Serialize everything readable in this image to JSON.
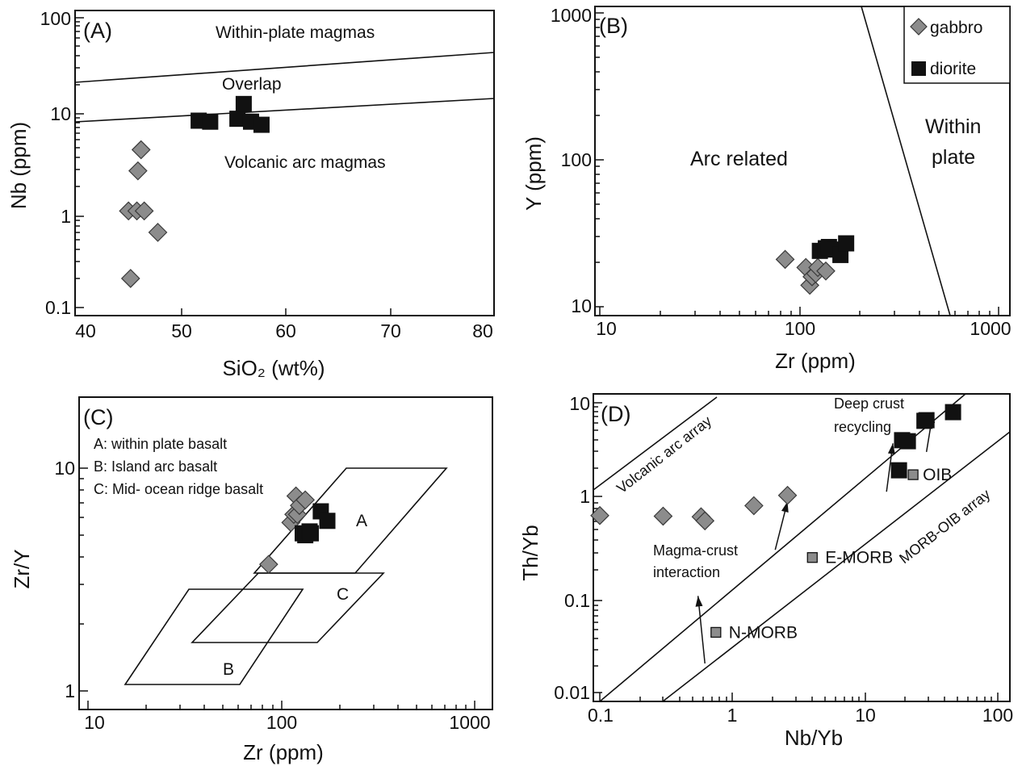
{
  "chart_data": [
    {
      "panel": "(A)",
      "type": "scatter",
      "xlabel": "SiO₂ (wt%)",
      "ylabel": "Nb (ppm)",
      "xlim": [
        40,
        80
      ],
      "ylim": [
        0.1,
        100
      ],
      "yscale": "log",
      "xticks": [
        "40",
        "50",
        "60",
        "70",
        "80"
      ],
      "yticks": [
        "0.1",
        "1",
        "10",
        "100"
      ],
      "boundaries": [
        {
          "x": [
            40,
            80
          ],
          "y": [
            22,
            45
          ]
        },
        {
          "x": [
            40,
            80
          ],
          "y": [
            8.2,
            14.5
          ]
        }
      ],
      "regions": [
        "Within-plate magmas",
        "Overlap",
        "Volcanic arc magmas"
      ],
      "series": [
        {
          "name": "gabbro",
          "x": [
            45.1,
            45.3,
            45.9,
            46.0,
            46.3,
            46.6,
            47.9
          ],
          "y": [
            1.0,
            0.2,
            1.0,
            2.6,
            4.3,
            1.0,
            0.6
          ]
        },
        {
          "name": "diorite",
          "x": [
            51.8,
            52.9,
            55.5,
            56.1,
            56.8,
            57.8
          ],
          "y": [
            8.6,
            8.4,
            9.0,
            12.8,
            8.4,
            7.8
          ]
        }
      ]
    },
    {
      "panel": "(B)",
      "type": "scatter",
      "xlabel": "Zr (ppm)",
      "ylabel": "Y (ppm)",
      "xlim": [
        10,
        1000
      ],
      "ylim": [
        10,
        1000
      ],
      "xscale": "log",
      "yscale": "log",
      "xticks": [
        "10",
        "100",
        "1000"
      ],
      "yticks": [
        "10",
        "100",
        "1000"
      ],
      "boundaries": [
        {
          "x": [
            230,
            590
          ],
          "y": [
            1000,
            10
          ]
        }
      ],
      "regions": [
        "Arc related",
        "Within",
        "plate"
      ],
      "legend": [
        "gabbro",
        "diorite"
      ],
      "series": [
        {
          "name": "gabbro",
          "x": [
            85,
            108,
            113,
            116,
            121,
            124,
            136
          ],
          "y": [
            21,
            18.5,
            14,
            16,
            16.8,
            18.5,
            17.5
          ]
        },
        {
          "name": "diorite",
          "x": [
            127,
            136,
            141,
            151,
            161,
            172
          ],
          "y": [
            24,
            25,
            25.5,
            24.5,
            22.5,
            27
          ]
        }
      ]
    },
    {
      "panel": "(C)",
      "type": "scatter",
      "xlabel": "Zr (ppm)",
      "ylabel": "Zr/Y",
      "xlim": [
        10,
        1000
      ],
      "ylim": [
        0.9,
        20
      ],
      "xscale": "log",
      "yscale": "log",
      "xticks": [
        "10",
        "100",
        "1000"
      ],
      "yticks": [
        "1",
        "10"
      ],
      "fields": [
        {
          "name": "A",
          "x": [
            70,
            210,
            720,
            240
          ],
          "y": [
            3.5,
            3.5,
            10,
            10
          ]
        },
        {
          "name": "B",
          "x": [
            16,
            59,
            121,
            32
          ],
          "y": [
            1.15,
            1.15,
            3,
            3
          ]
        },
        {
          "name": "C",
          "x": [
            34,
            144,
            325,
            79
          ],
          "y": [
            1.8,
            1.8,
            3.5,
            3.5
          ]
        }
      ],
      "field_notes": [
        "A: within plate basalt",
        "B: Island arc basalt",
        "C: Mid- ocean ridge basalt"
      ],
      "series": [
        {
          "name": "gabbro",
          "x": [
            86,
            112,
            116,
            119,
            121,
            124,
            133
          ],
          "y": [
            3.7,
            5.7,
            6.2,
            7.5,
            6.2,
            6.8,
            7.2
          ]
        },
        {
          "name": "diorite",
          "x": [
            129,
            133,
            140,
            142,
            160,
            173
          ],
          "y": [
            5.1,
            5.0,
            5.2,
            5.1,
            6.4,
            5.8
          ]
        }
      ]
    },
    {
      "panel": "(D)",
      "type": "scatter",
      "xlabel": "Nb/Yb",
      "ylabel": "Th/Yb",
      "xlim": [
        0.09,
        120
      ],
      "ylim": [
        0.01,
        12
      ],
      "xscale": "log",
      "yscale": "log",
      "xticks": [
        "0.1",
        "1",
        "10",
        "100"
      ],
      "yticks": [
        "0.01",
        "0.1",
        "1",
        "10"
      ],
      "boundaries": [
        {
          "name": "Volcanic arc array",
          "x": [
            0.09,
            2.1
          ],
          "y": [
            1.1,
            12
          ]
        },
        {
          "name": "upper MORB-OIB",
          "x": [
            0.1,
            60
          ],
          "y": [
            0.01,
            12
          ]
        },
        {
          "name": "lower MORB-OIB",
          "x": [
            0.3,
            120
          ],
          "y": [
            0.01,
            5
          ]
        }
      ],
      "arrays": [
        "Volcanic arc array",
        "MORB-OIB array"
      ],
      "annotations": [
        "Deep crust",
        "recycling",
        "Magma-crust",
        "interaction"
      ],
      "references": [
        {
          "name": "N-MORB",
          "x": 0.75,
          "y": 0.042
        },
        {
          "name": "E-MORB",
          "x": 4.0,
          "y": 0.25
        },
        {
          "name": "OIB",
          "x": 23,
          "y": 1.8
        }
      ],
      "arrows": [
        {
          "from": [
            0.62,
            0.02
          ],
          "to": [
            0.55,
            0.1
          ]
        },
        {
          "from": [
            2.1,
            0.3
          ],
          "to": [
            2.6,
            0.95
          ]
        },
        {
          "from": [
            14.5,
            1.2
          ],
          "to": [
            16.2,
            3.8
          ]
        },
        {
          "from": [
            29,
            3.1
          ],
          "to": [
            32.5,
            8.0
          ]
        }
      ],
      "series": [
        {
          "name": "gabbro",
          "x": [
            0.1,
            0.3,
            0.58,
            0.62,
            1.45,
            2.6
          ],
          "y": [
            0.68,
            0.67,
            0.66,
            0.6,
            0.86,
            1.1
          ]
        },
        {
          "name": "diorite",
          "x": [
            18,
            19,
            21,
            28,
            29,
            46
          ],
          "y": [
            2.0,
            4.1,
            4.0,
            6.5,
            6.6,
            8.0
          ]
        }
      ]
    }
  ],
  "text": {
    "a": {
      "panel": "(A)",
      "xlabel": "SiO₂ (wt%)",
      "ylabel": "Nb (ppm)",
      "xticks": [
        "40",
        "50",
        "60",
        "70",
        "80"
      ],
      "yticks": [
        "0.1",
        "1",
        "10",
        "100"
      ],
      "r1": "Within-plate magmas",
      "r2": "Overlap",
      "r3": "Volcanic arc magmas"
    },
    "b": {
      "panel": "(B)",
      "xlabel": "Zr (ppm)",
      "ylabel": "Y (ppm)",
      "xticks": [
        "10",
        "100",
        "1000"
      ],
      "yticks": [
        "10",
        "100",
        "1000"
      ],
      "r1": "Arc related",
      "r2": "Within",
      "r3": "plate",
      "legend_gabbro": "gabbro",
      "legend_diorite": "diorite"
    },
    "c": {
      "panel": "(C)",
      "xlabel": "Zr (ppm)",
      "ylabel": "Zr/Y",
      "xticks": [
        "10",
        "100",
        "1000"
      ],
      "yticks": [
        "1",
        "10"
      ],
      "noteA": "A: within plate basalt",
      "noteB": "B: Island arc basalt",
      "noteC": "C: Mid- ocean ridge basalt",
      "fA": "A",
      "fB": "B",
      "fC": "C"
    },
    "d": {
      "panel": "(D)",
      "xlabel": "Nb/Yb",
      "ylabel": "Th/Yb",
      "xticks": [
        "0.1",
        "1",
        "10",
        "100"
      ],
      "yticks": [
        "0.01",
        "0.1",
        "1",
        "10"
      ],
      "arc": "Volcanic arc array",
      "morb": "MORB-OIB array",
      "deep1": "Deep crust",
      "deep2": "recycling",
      "mc1": "Magma-crust",
      "mc2": "interaction",
      "nmorb": "N-MORB",
      "emorb": "E-MORB",
      "oib": "OIB"
    }
  },
  "colors": {
    "gabbro": "#8c8c8c",
    "diorite": "#111111",
    "reference": "#8c8c8c",
    "axis": "#111111"
  }
}
